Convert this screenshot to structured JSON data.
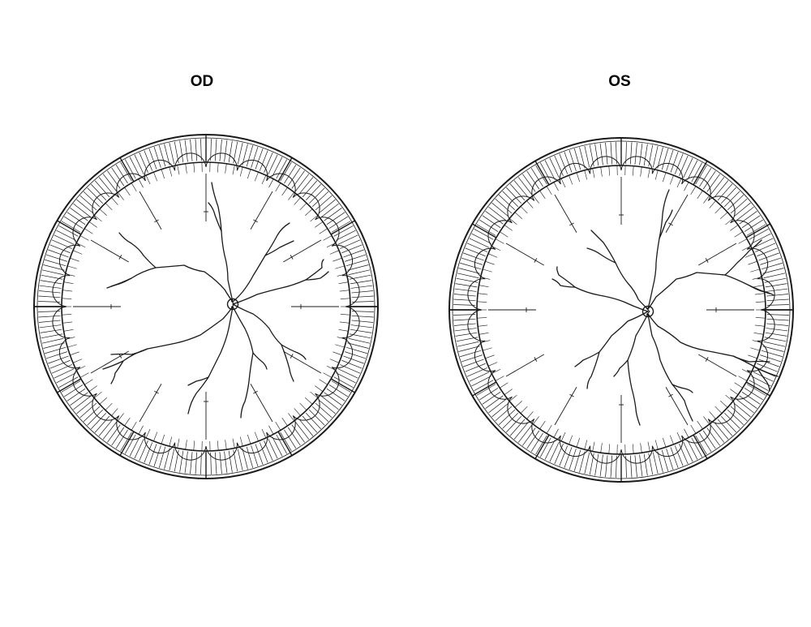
{
  "labels": {
    "right_eye": "OD",
    "left_eye": "OS"
  },
  "colors": {
    "ink": "#1a1a1a",
    "background": "#ffffff"
  }
}
